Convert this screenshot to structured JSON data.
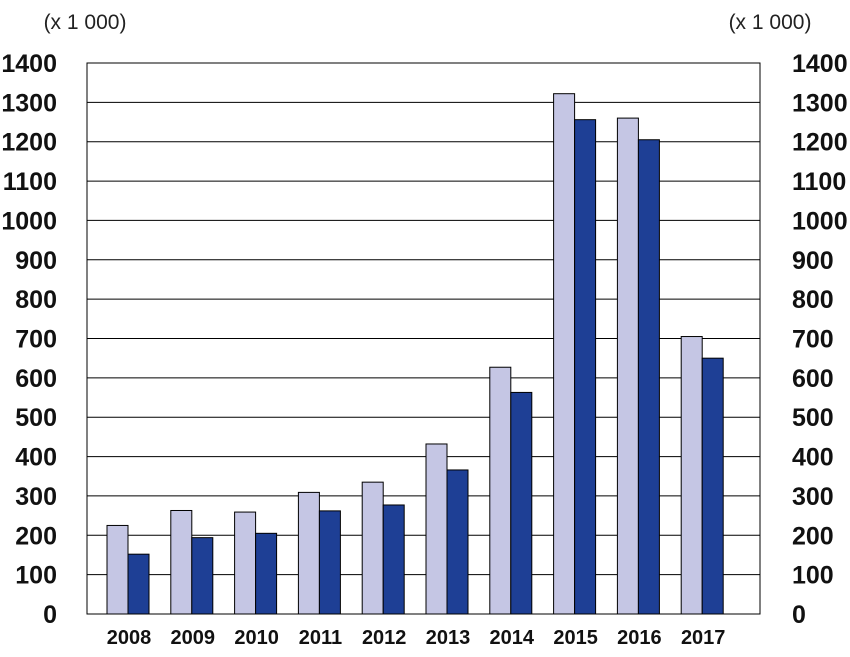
{
  "chart_data": {
    "type": "bar",
    "unit_label_left": "(x 1 000)",
    "unit_label_right": "(x 1 000)",
    "categories": [
      "2008",
      "2009",
      "2010",
      "2011",
      "2012",
      "2013",
      "2014",
      "2015",
      "2016",
      "2017"
    ],
    "series": [
      {
        "values": [
          225,
          263,
          259,
          309,
          335,
          432,
          627,
          1322,
          1260,
          705
        ],
        "color": "#c5c6e4"
      },
      {
        "values": [
          152,
          194,
          205,
          262,
          277,
          366,
          563,
          1256,
          1205,
          650
        ],
        "color": "#1e3f95"
      }
    ],
    "ylim": [
      0,
      1400
    ],
    "yticks": [
      0,
      100,
      200,
      300,
      400,
      500,
      600,
      700,
      800,
      900,
      1000,
      1100,
      1200,
      1300,
      1400
    ],
    "ytick_labels_left": [
      "0",
      "100",
      "200",
      "300",
      "400",
      "500",
      "600",
      "700",
      "800",
      "900",
      "1000",
      "1100",
      "1200",
      "1300",
      "1400"
    ],
    "ytick_labels_right": [
      "0",
      "100",
      "200",
      "300",
      "400",
      "500",
      "600",
      "700",
      "800",
      "900",
      "1000",
      "1100",
      "1200",
      "1300",
      "1400"
    ],
    "grid": true,
    "gridline_color": "#000000"
  }
}
